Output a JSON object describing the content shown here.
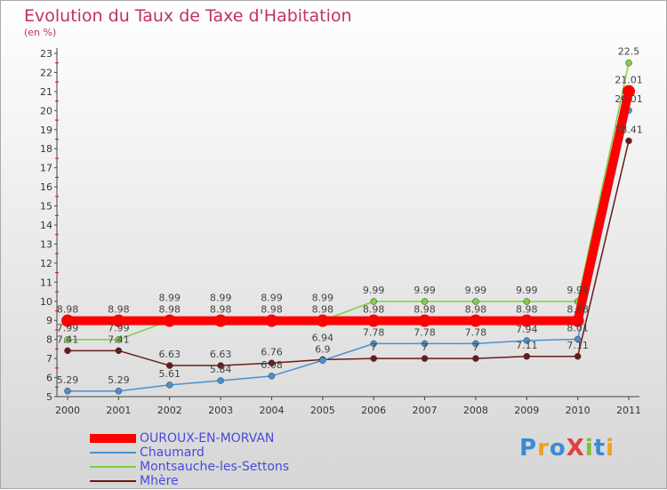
{
  "title": "Evolution du Taux de Taxe d'Habitation",
  "unit": "(en %)",
  "logo": "ProXiti",
  "chart_data": {
    "type": "line",
    "title": "Evolution du Taux de Taxe d'Habitation",
    "ylabel": "(en %)",
    "x": [
      2000,
      2001,
      2002,
      2003,
      2004,
      2005,
      2006,
      2007,
      2008,
      2009,
      2010,
      2011
    ],
    "ylim": [
      5,
      23
    ],
    "yticks": [
      5,
      6,
      7,
      8,
      9,
      10,
      11,
      12,
      13,
      14,
      15,
      16,
      17,
      18,
      19,
      20,
      21,
      22,
      23
    ],
    "grid": false,
    "legend_position": "bottom-left",
    "series": [
      {
        "name": "OUROUX-EN-MORVAN",
        "color": "#ff0000",
        "values": [
          8.98,
          8.98,
          8.98,
          8.98,
          8.98,
          8.98,
          8.98,
          8.98,
          8.98,
          8.98,
          8.98,
          21.01
        ]
      },
      {
        "name": "Chaumard",
        "color": "#4a90d0",
        "values": [
          5.29,
          5.29,
          5.61,
          5.84,
          6.08,
          6.9,
          7.78,
          7.78,
          7.78,
          7.94,
          8.01,
          20.01
        ]
      },
      {
        "name": "Montsauche-les-Settons",
        "color": "#80d040",
        "values": [
          7.99,
          7.99,
          8.99,
          8.99,
          8.99,
          8.99,
          9.99,
          9.99,
          9.99,
          9.99,
          9.99,
          22.5
        ]
      },
      {
        "name": "Mhère",
        "color": "#6a1a1a",
        "values": [
          7.41,
          7.41,
          6.63,
          6.63,
          6.76,
          6.94,
          7,
          7,
          7,
          7.11,
          7.11,
          18.41
        ]
      }
    ]
  }
}
